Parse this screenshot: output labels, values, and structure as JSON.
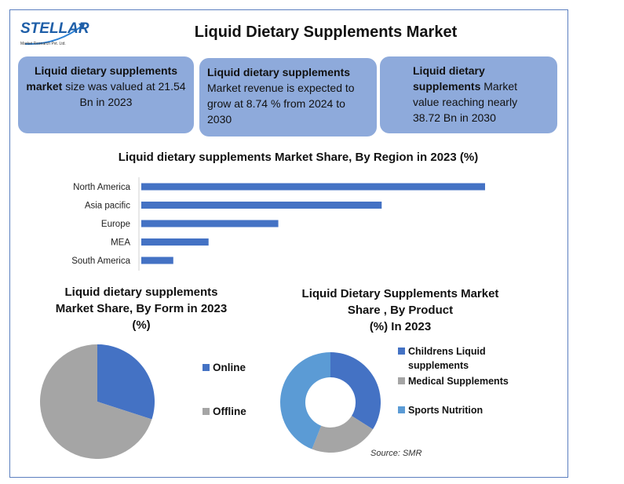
{
  "logo": {
    "name": "STELLAR",
    "tagline": "Market Research Pvt. Ltd."
  },
  "title": "Liquid Dietary Supplements Market",
  "boxes": [
    {
      "bold": "Liquid dietary supplements market",
      "text": " size was valued at 21.54 Bn in 2023"
    },
    {
      "bold": "Liquid dietary supplements",
      "text": " Market revenue is expected to grow at 8.74 % from 2024 to 2030"
    },
    {
      "bold": "Liquid dietary supplements",
      "text": " Market value reaching nearly 38.72 Bn in 2030"
    }
  ],
  "colors": {
    "blue": "#4472c4",
    "gray": "#a5a5a5",
    "lightblue": "#5b9bd5",
    "box": "#8eaadb"
  },
  "source": "Source: SMR",
  "chart_data": [
    {
      "type": "bar",
      "orientation": "horizontal",
      "title": "Liquid dietary supplements Market Share, By Region in 2023 (%)",
      "categories": [
        "North America",
        "Asia pacific",
        "Europe",
        "MEA",
        "South America"
      ],
      "values": [
        41.9,
        29.3,
        16.7,
        8.2,
        3.9
      ],
      "xlim": [
        0,
        41.9
      ],
      "grid": false
    },
    {
      "type": "pie",
      "title": "Liquid dietary supplements Market Share, By Form in 2023 (%)",
      "title_lines": [
        "Liquid dietary supplements",
        "Market Share, By Form in 2023",
        "(%)"
      ],
      "labels": [
        "Online",
        "Offline"
      ],
      "values": [
        30,
        70
      ],
      "colors": [
        "#4472c4",
        "#a5a5a5"
      ],
      "legend": "right"
    },
    {
      "type": "pie",
      "donut": true,
      "title": "Liquid Dietary Supplements Market Share , By Product (%) In 2023",
      "title_lines": [
        "Liquid Dietary Supplements Market",
        "Share , By Product",
        "(%) In 2023"
      ],
      "labels": [
        "Childrens Liquid supplements",
        "Medical Supplements",
        "Sports Nutrition"
      ],
      "values": [
        34,
        22,
        44
      ],
      "colors": [
        "#4472c4",
        "#a5a5a5",
        "#5b9bd5"
      ],
      "legend": "right"
    }
  ]
}
